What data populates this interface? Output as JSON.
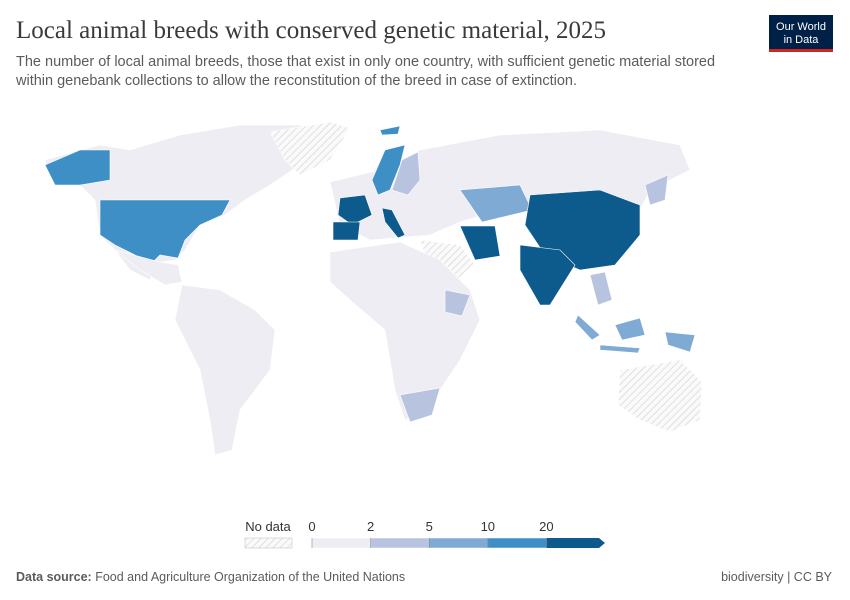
{
  "header": {
    "title": "Local animal breeds with conserved genetic material, 2025",
    "subtitle": [
      "The number of local animal breeds, those that exist in only one country, with sufficient genetic material stored",
      "within genebank collections to allow the reconstitution of the breed in case of extinction."
    ]
  },
  "logo": [
    "Our World",
    "in Data"
  ],
  "legend": {
    "no_data_label": "No data",
    "no_data_color": "#f2f2f2",
    "bins": [
      0,
      2,
      5,
      10,
      20
    ],
    "colors": [
      "#eeedf4",
      "#b8c4df",
      "#7faad3",
      "#3d8fc5",
      "#0d5a8c"
    ]
  },
  "footer": {
    "source_label": "Data source:",
    "source": "Food and Agriculture Organization of the United Nations",
    "right": "biodiversity | CC BY"
  }
}
